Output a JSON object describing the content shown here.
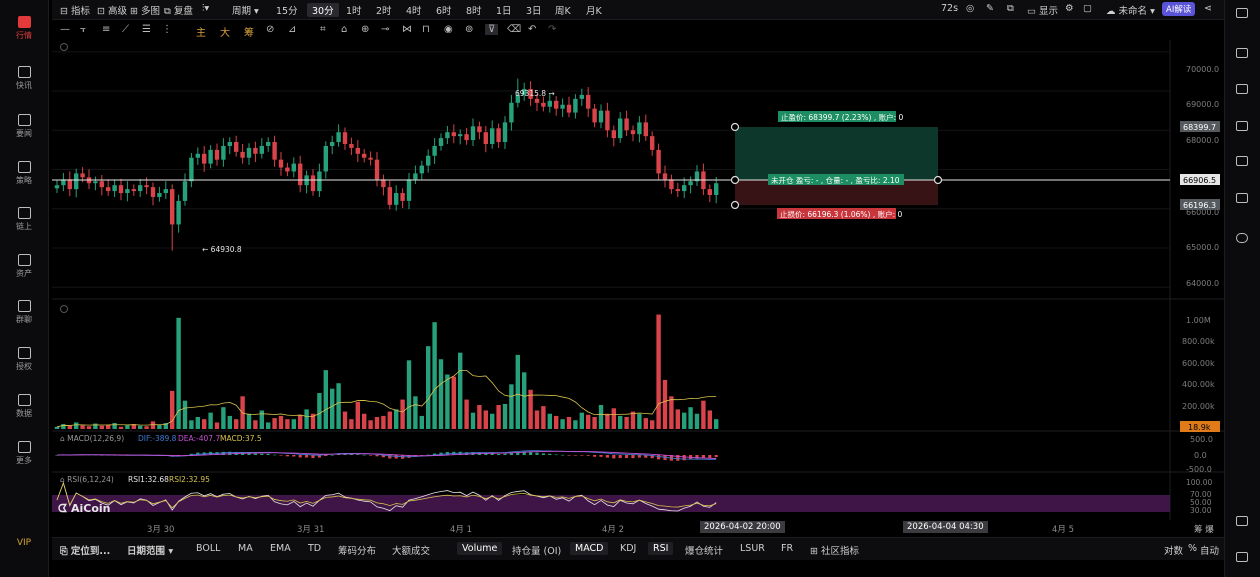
{
  "sidebar_left": {
    "items": [
      {
        "label": "行情",
        "icon": "market-icon",
        "active": true
      },
      {
        "label": "快讯",
        "icon": "news-flash-icon"
      },
      {
        "label": "要闻",
        "icon": "headline-icon"
      },
      {
        "label": "策略",
        "icon": "strategy-icon"
      },
      {
        "label": "链上",
        "icon": "onchain-icon"
      },
      {
        "label": "资产",
        "icon": "wallet-icon"
      },
      {
        "label": "群聊",
        "icon": "chat-icon"
      },
      {
        "label": "授权",
        "icon": "auth-icon"
      },
      {
        "label": "数据",
        "icon": "data-icon"
      },
      {
        "label": "更多",
        "icon": "more-grid-icon"
      }
    ],
    "vip": "VIP"
  },
  "toolbar": {
    "indicator": "指标",
    "advanced": "高级",
    "multi": "多图",
    "replay": "复盘",
    "period": "周期",
    "intervals": [
      "15分",
      "30分",
      "1时",
      "2时",
      "4时",
      "6时",
      "8时",
      "1日",
      "3日",
      "周K",
      "月K"
    ],
    "active_interval": "30分",
    "countdown": "72s",
    "display": "显示",
    "unnamed": "未命名",
    "ai": "AI解读"
  },
  "drawing_tools": {
    "main": "主",
    "big": "大",
    "chip": "筹"
  },
  "price_axis": {
    "ticks": [
      "70000.0",
      "69000.0",
      "68000.0",
      "67000.0",
      "66000.0",
      "65000.0",
      "64000.0"
    ],
    "tp_tag": "68399.7",
    "current_tag": "66906.5",
    "sl_tag": "66196.3"
  },
  "annotations": {
    "high": "69315.8",
    "low": "64930.8",
    "tp_text": "止盈价: 68399.7 (2.23%) , 账户: 0",
    "mid_text": "未开仓 盈亏: - , 仓量: - , 盈亏比: 2.10",
    "sl_text": "止损价: 66196.3 (1.06%) , 账户: 0"
  },
  "volume_axis": {
    "ticks": [
      "1.00M",
      "800.00k",
      "600.00k",
      "400.00k",
      "200.00k"
    ],
    "current": "18.9k"
  },
  "macd": {
    "label": "MACD(12,26,9)",
    "dif": "DIF:-389.8",
    "dea": "DEA:-407.7",
    "macd": "MACD:37.5",
    "ticks": [
      "500.0",
      "0.0",
      "-500.0"
    ]
  },
  "rsi": {
    "label": "RSI(6,12,24)",
    "rsi1": "RSI1:32.68",
    "rsi2": "RSI2:32.95",
    "ticks": [
      "100.00",
      "70.00",
      "50.00",
      "30.00"
    ]
  },
  "logo": "AiCoin",
  "time_axis": {
    "labels": [
      "3月 30",
      "3月 31",
      "4月 1",
      "4月 2",
      "4月 5"
    ],
    "box1": "2026-04-02 20:00",
    "box2": "2026-04-04 04:30",
    "right": "筹 爆"
  },
  "bottom_bar": {
    "locate": "定位到...",
    "range": "日期范围",
    "items": [
      "BOLL",
      "MA",
      "EMA",
      "TD",
      "筹码分布",
      "大额成交",
      "Volume",
      "持仓量 (OI)",
      "MACD",
      "KDJ",
      "RSI",
      "爆仓统计",
      "LSUR",
      "FR",
      "社区指标"
    ],
    "active": [
      "Volume",
      "MACD",
      "RSI"
    ],
    "right": [
      "对数",
      "%",
      "自动"
    ]
  },
  "chart_data": {
    "type": "candlestick",
    "interval": "30分",
    "ylim": [
      63700,
      70300
    ],
    "high": 69315.8,
    "low": 64930.8,
    "current": 66906.5,
    "take_profit": 68399.7,
    "stop_loss": 66196.3,
    "close_series": [
      66600,
      66750,
      66500,
      66900,
      66800,
      66650,
      66700,
      66550,
      66450,
      66600,
      66400,
      66500,
      66450,
      66600,
      66550,
      66300,
      66400,
      66500,
      65600,
      66200,
      66700,
      67300,
      67400,
      67150,
      67500,
      67250,
      67600,
      67700,
      67450,
      67300,
      67550,
      67400,
      67600,
      67700,
      67250,
      67050,
      66950,
      67150,
      66600,
      66850,
      66450,
      66950,
      67600,
      67700,
      67950,
      67650,
      67550,
      67400,
      67300,
      67250,
      66750,
      66550,
      66100,
      66400,
      66200,
      66750,
      66900,
      67100,
      67350,
      67600,
      67800,
      67950,
      67850,
      67900,
      67750,
      68100,
      67950,
      67650,
      68050,
      67700,
      68200,
      68700,
      68900,
      69050,
      68800,
      68700,
      68600,
      68750,
      68550,
      68650,
      68450,
      68800,
      68900,
      68550,
      68200,
      68500,
      68000,
      67800,
      68300,
      68000,
      67900,
      68200,
      67850,
      67500,
      66900,
      66750,
      66500,
      66450,
      66600,
      66700,
      66950,
      66500,
      66350,
      66650
    ],
    "volume_k": [
      20,
      45,
      30,
      60,
      35,
      25,
      50,
      30,
      40,
      55,
      20,
      35,
      45,
      30,
      25,
      70,
      40,
      55,
      350,
      1020,
      260,
      80,
      110,
      90,
      150,
      60,
      200,
      120,
      90,
      300,
      140,
      80,
      170,
      60,
      100,
      120,
      90,
      90,
      130,
      180,
      140,
      330,
      540,
      370,
      420,
      160,
      90,
      250,
      140,
      80,
      110,
      120,
      160,
      180,
      270,
      630,
      300,
      120,
      760,
      980,
      640,
      500,
      480,
      700,
      270,
      150,
      220,
      170,
      140,
      220,
      230,
      410,
      680,
      520,
      360,
      170,
      210,
      140,
      120,
      90,
      110,
      80,
      150,
      130,
      110,
      220,
      140,
      190,
      120,
      110,
      160,
      140,
      100,
      80,
      1050,
      450,
      300,
      180,
      150,
      200,
      140,
      260,
      170,
      90
    ]
  }
}
